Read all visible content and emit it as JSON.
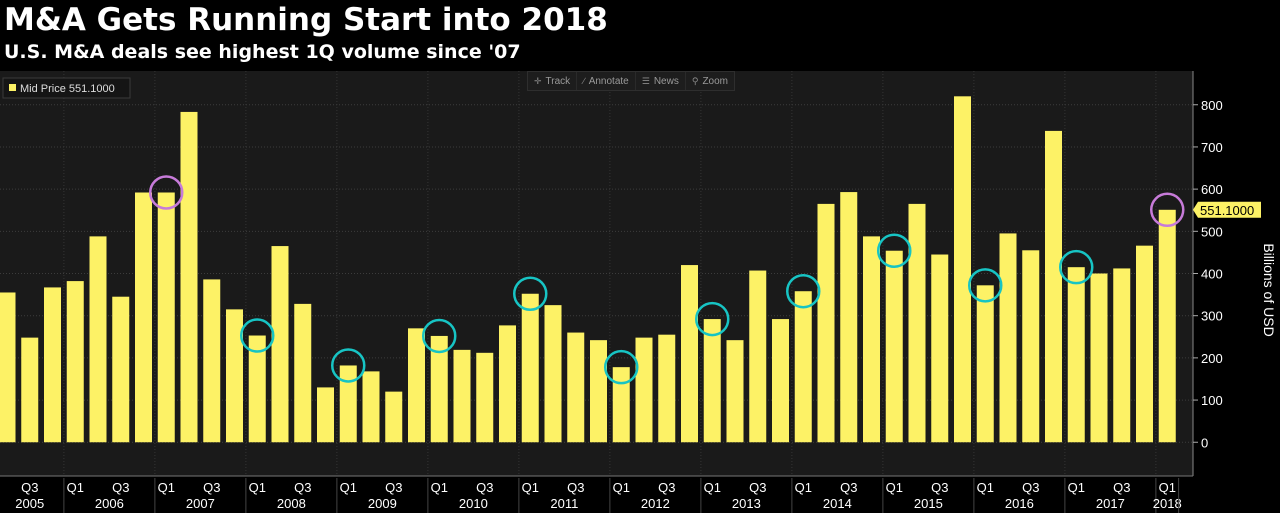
{
  "header": {
    "title": "M&A Gets Running Start into 2018",
    "subtitle": "U.S. M&A deals see highest 1Q volume since '07"
  },
  "toolbar": {
    "items": [
      {
        "label": "Track",
        "icon": "crosshair-icon"
      },
      {
        "label": "Annotate",
        "icon": "pencil-icon"
      },
      {
        "label": "News",
        "icon": "news-icon"
      },
      {
        "label": "Zoom",
        "icon": "magnifier-icon"
      }
    ]
  },
  "legend": {
    "label": "Mid Price 551.1000"
  },
  "last_value_tag": "551.1000",
  "colors": {
    "bar": "#fdf266",
    "plot_bg": "#1a1a1a",
    "cyan_marker": "#17c4c4",
    "violet_marker": "#c77bd9"
  },
  "chart_data": {
    "type": "bar",
    "ylabel": "Billions of USD",
    "ylim": [
      -80,
      880
    ],
    "y_ticks": [
      0,
      100,
      200,
      300,
      400,
      500,
      600,
      700,
      800
    ],
    "grid": true,
    "legend_position": "top-left",
    "axis_position": "right",
    "categories": [
      "Q2 2005",
      "Q3 2005",
      "Q4 2005",
      "Q1 2006",
      "Q2 2006",
      "Q3 2006",
      "Q4 2006",
      "Q1 2007",
      "Q2 2007",
      "Q3 2007",
      "Q4 2007",
      "Q1 2008",
      "Q2 2008",
      "Q3 2008",
      "Q4 2008",
      "Q1 2009",
      "Q2 2009",
      "Q3 2009",
      "Q4 2009",
      "Q1 2010",
      "Q2 2010",
      "Q3 2010",
      "Q4 2010",
      "Q1 2011",
      "Q2 2011",
      "Q3 2011",
      "Q4 2011",
      "Q1 2012",
      "Q2 2012",
      "Q3 2012",
      "Q4 2012",
      "Q1 2013",
      "Q2 2013",
      "Q3 2013",
      "Q4 2013",
      "Q1 2014",
      "Q2 2014",
      "Q3 2014",
      "Q4 2014",
      "Q1 2015",
      "Q2 2015",
      "Q3 2015",
      "Q4 2015",
      "Q1 2016",
      "Q2 2016",
      "Q3 2016",
      "Q4 2016",
      "Q1 2017",
      "Q2 2017",
      "Q3 2017",
      "Q4 2017",
      "Q1 2018"
    ],
    "values": [
      355,
      248,
      367,
      382,
      488,
      345,
      592,
      592,
      783,
      386,
      315,
      253,
      465,
      328,
      130,
      182,
      168,
      120,
      270,
      252,
      219,
      212,
      277,
      352,
      325,
      260,
      242,
      178,
      248,
      255,
      420,
      292,
      242,
      407,
      292,
      358,
      565,
      593,
      488,
      454,
      565,
      445,
      820,
      372,
      495,
      455,
      738,
      415,
      400,
      412,
      466,
      551
    ],
    "highlighted_cyan": [
      "Q1 2008",
      "Q1 2009",
      "Q1 2010",
      "Q1 2011",
      "Q1 2012",
      "Q1 2013",
      "Q1 2014",
      "Q1 2015",
      "Q1 2016",
      "Q1 2017"
    ],
    "highlighted_violet": [
      "Q1 2007",
      "Q1 2018"
    ],
    "x_quarter_labels": [
      {
        "label": "Q3",
        "category": "Q3 2005"
      },
      {
        "label": "Q1",
        "category": "Q1 2006"
      },
      {
        "label": "Q3",
        "category": "Q3 2006"
      },
      {
        "label": "Q1",
        "category": "Q1 2007"
      },
      {
        "label": "Q3",
        "category": "Q3 2007"
      },
      {
        "label": "Q1",
        "category": "Q1 2008"
      },
      {
        "label": "Q3",
        "category": "Q3 2008"
      },
      {
        "label": "Q1",
        "category": "Q1 2009"
      },
      {
        "label": "Q3",
        "category": "Q3 2009"
      },
      {
        "label": "Q1",
        "category": "Q1 2010"
      },
      {
        "label": "Q3",
        "category": "Q3 2010"
      },
      {
        "label": "Q1",
        "category": "Q1 2011"
      },
      {
        "label": "Q3",
        "category": "Q3 2011"
      },
      {
        "label": "Q1",
        "category": "Q1 2012"
      },
      {
        "label": "Q3",
        "category": "Q3 2012"
      },
      {
        "label": "Q1",
        "category": "Q1 2013"
      },
      {
        "label": "Q3",
        "category": "Q3 2013"
      },
      {
        "label": "Q1",
        "category": "Q1 2014"
      },
      {
        "label": "Q3",
        "category": "Q3 2014"
      },
      {
        "label": "Q1",
        "category": "Q1 2015"
      },
      {
        "label": "Q3",
        "category": "Q3 2015"
      },
      {
        "label": "Q1",
        "category": "Q1 2016"
      },
      {
        "label": "Q3",
        "category": "Q3 2016"
      },
      {
        "label": "Q1",
        "category": "Q1 2017"
      },
      {
        "label": "Q3",
        "category": "Q3 2017"
      },
      {
        "label": "Q1",
        "category": "Q1 2018"
      }
    ],
    "x_year_labels": [
      "2005",
      "2006",
      "2007",
      "2008",
      "2009",
      "2010",
      "2011",
      "2012",
      "2013",
      "2014",
      "2015",
      "2016",
      "2017",
      "2018"
    ]
  }
}
